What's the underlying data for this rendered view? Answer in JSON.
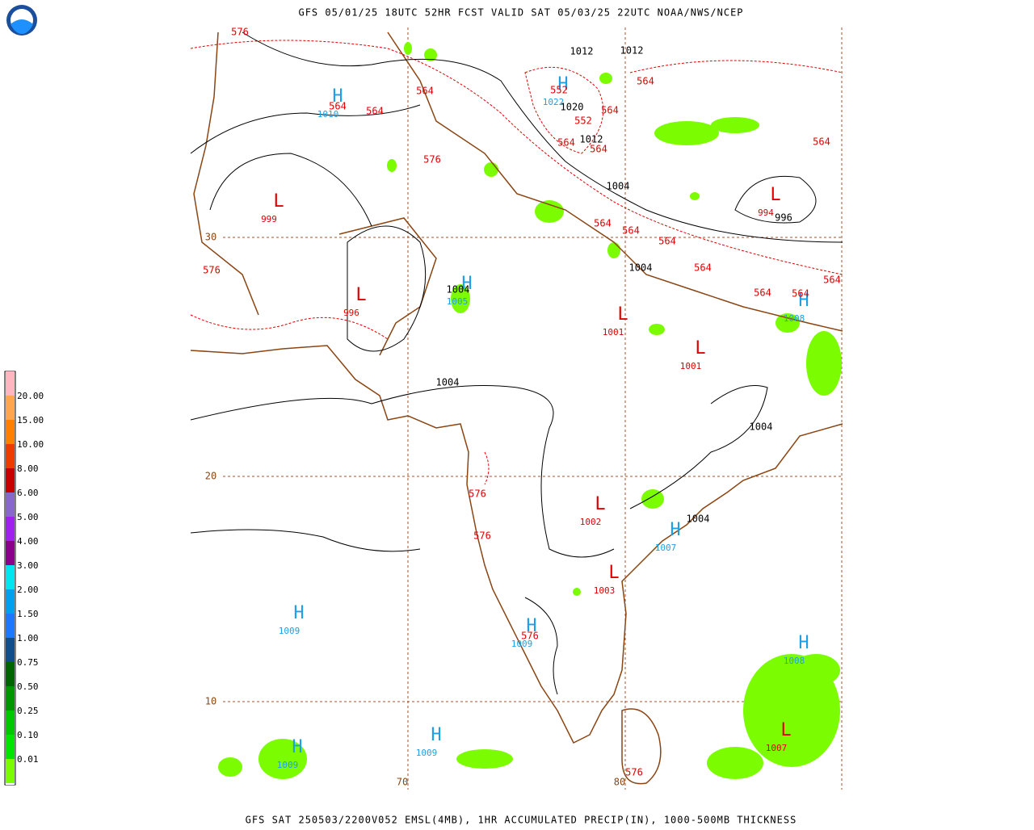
{
  "header": {
    "title": "GFS 05/01/25 18UTC 52HR FCST VALID SAT 05/03/25 22UTC NOAA/NWS/NCEP"
  },
  "footer": {
    "text": "GFS SAT 250503/2200V052 EMSL(4MB), 1HR ACCUMULATED PRECIP(IN), 1000-500MB THICKNESS"
  },
  "legend": {
    "levels": [
      {
        "label": "0.01",
        "color": "#7cfc00"
      },
      {
        "label": "0.10",
        "color": "#00e400"
      },
      {
        "label": "0.25",
        "color": "#00c800"
      },
      {
        "label": "0.50",
        "color": "#009600"
      },
      {
        "label": "0.75",
        "color": "#006400"
      },
      {
        "label": "1.00",
        "color": "#104e8b"
      },
      {
        "label": "1.50",
        "color": "#1e78ff"
      },
      {
        "label": "2.00",
        "color": "#00a0f0"
      },
      {
        "label": "3.00",
        "color": "#00e6f0"
      },
      {
        "label": "4.00",
        "color": "#8b008b"
      },
      {
        "label": "5.00",
        "color": "#a020f0"
      },
      {
        "label": "6.00",
        "color": "#8968cd"
      },
      {
        "label": "8.00",
        "color": "#c80000"
      },
      {
        "label": "10.00",
        "color": "#ee3b00"
      },
      {
        "label": "15.00",
        "color": "#ff7f00"
      },
      {
        "label": "20.00",
        "color": "#ffa54f"
      }
    ],
    "top_color": "#ffb6c1",
    "bottom_color": "#ffffff"
  },
  "highs": [
    {
      "symbol": "H",
      "value": "1010"
    },
    {
      "symbol": "H",
      "value": "1022"
    },
    {
      "symbol": "H",
      "value": "1005"
    },
    {
      "symbol": "H",
      "value": "1008"
    },
    {
      "symbol": "H",
      "value": "1007"
    },
    {
      "symbol": "H",
      "value": "1009"
    },
    {
      "symbol": "H",
      "value": "1009"
    },
    {
      "symbol": "H",
      "value": "1008"
    },
    {
      "symbol": "H",
      "value": "1009"
    },
    {
      "symbol": "H",
      "value": "1009"
    }
  ],
  "lows": [
    {
      "symbol": "L",
      "value": "999"
    },
    {
      "symbol": "L",
      "value": "996"
    },
    {
      "symbol": "L",
      "value": "994"
    },
    {
      "symbol": "L",
      "value": "1001"
    },
    {
      "symbol": "L",
      "value": "1001"
    },
    {
      "symbol": "L",
      "value": "1002"
    },
    {
      "symbol": "L",
      "value": "1003"
    },
    {
      "symbol": "L",
      "value": "1007"
    }
  ],
  "isobar_labels": [
    "1012",
    "1012",
    "1020",
    "1012",
    "1004",
    "996",
    "1004",
    "1004",
    "1004",
    "1004",
    "1004"
  ],
  "thickness_labels": [
    "576",
    "564",
    "564",
    "564",
    "576",
    "552",
    "564",
    "552",
    "564",
    "564",
    "564",
    "564",
    "564",
    "564",
    "564",
    "564",
    "564",
    "564",
    "564",
    "576",
    "576",
    "576",
    "576",
    "576"
  ],
  "grid_labels": [
    "30",
    "20",
    "10",
    "70",
    "80"
  ]
}
